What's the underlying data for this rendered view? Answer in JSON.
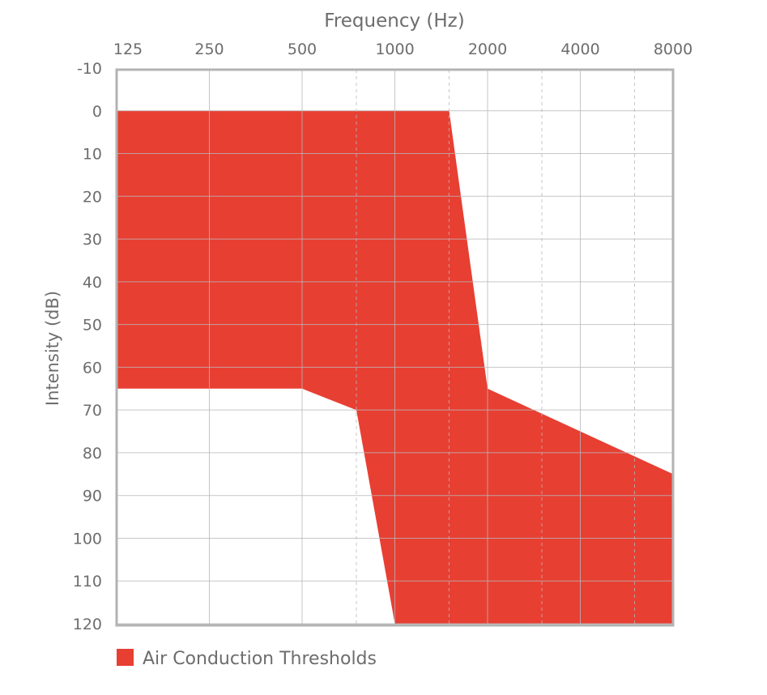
{
  "chart_data": {
    "type": "area",
    "xlabel": "Frequency (Hz)",
    "ylabel": "Intensity (dB)",
    "x_scale": "log2",
    "x_ticks": [
      "125",
      "250",
      "500",
      "1000",
      "2000",
      "4000",
      "8000"
    ],
    "x_tick_values": [
      125,
      250,
      500,
      1000,
      2000,
      4000,
      8000
    ],
    "x_minor_values": [
      750,
      1500,
      3000,
      6000
    ],
    "y_ticks": [
      "-10",
      "0",
      "10",
      "20",
      "30",
      "40",
      "50",
      "60",
      "70",
      "80",
      "90",
      "100",
      "110",
      "120"
    ],
    "y_tick_values": [
      -10,
      0,
      10,
      20,
      30,
      40,
      50,
      60,
      70,
      80,
      90,
      100,
      110,
      120
    ],
    "xlim": [
      125,
      8000
    ],
    "ylim": [
      -10,
      120
    ],
    "y_inverted": true,
    "grid": true,
    "legend_position": "bottom-left",
    "series": [
      {
        "name": "Air Conduction Thresholds",
        "color": "#e83f33",
        "upper": [
          {
            "x": 125,
            "y": 0
          },
          {
            "x": 1500,
            "y": 0
          },
          {
            "x": 2000,
            "y": 65
          },
          {
            "x": 8000,
            "y": 85
          }
        ],
        "lower": [
          {
            "x": 125,
            "y": 65
          },
          {
            "x": 500,
            "y": 65
          },
          {
            "x": 750,
            "y": 70
          },
          {
            "x": 1000,
            "y": 120
          },
          {
            "x": 8000,
            "y": 120
          }
        ]
      }
    ],
    "colors": {
      "frame": "#b3b3b3",
      "grid": "#b8b8b8",
      "text": "#6d6d6d",
      "fill": "#e83f33"
    }
  }
}
